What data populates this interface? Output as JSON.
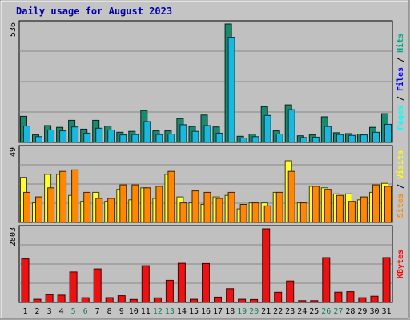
{
  "chart_data": {
    "type": "bar",
    "title": "Daily usage for August 2023",
    "categories": [
      "1",
      "2",
      "3",
      "4",
      "5",
      "6",
      "7",
      "8",
      "9",
      "10",
      "11",
      "12",
      "13",
      "14",
      "15",
      "16",
      "17",
      "18",
      "19",
      "20",
      "21",
      "22",
      "23",
      "24",
      "25",
      "26",
      "27",
      "28",
      "29",
      "30",
      "31"
    ],
    "weekend_days": [
      5,
      6,
      12,
      13,
      19,
      20,
      26,
      27
    ],
    "panels": [
      {
        "id": "pages-files-hits",
        "ymax": 536,
        "ymax_label": "536",
        "side_label": [
          {
            "text": "Pages",
            "color": "#00ffff"
          },
          {
            "text": " / ",
            "color": "#000000"
          },
          {
            "text": "Files",
            "color": "#0000ff"
          },
          {
            "text": " / ",
            "color": "#000000"
          },
          {
            "text": "Hits",
            "color": "#00aa88"
          }
        ],
        "series": [
          {
            "name": "Hits",
            "color": "#1a8a6e",
            "values": [
              118,
              34,
              76,
              68,
              100,
              60,
              100,
              74,
              46,
              50,
              144,
              52,
              52,
              108,
              72,
              124,
              70,
              536,
              28,
              38,
              162,
              52,
              170,
              30,
              34,
              116,
              44,
              40,
              38,
              68,
              130
            ]
          },
          {
            "name": "Files",
            "color": "#1ab8dc",
            "values": [
              74,
              26,
              56,
              52,
              70,
              42,
              64,
              56,
              34,
              36,
              94,
              36,
              38,
              80,
              50,
              76,
              42,
              476,
              20,
              26,
              122,
              38,
              148,
              22,
              24,
              72,
              36,
              32,
              34,
              46,
              82
            ]
          },
          {
            "name": "Pages",
            "color": "#00ffff",
            "values": [
              0,
              0,
              0,
              0,
              0,
              0,
              0,
              0,
              0,
              0,
              0,
              0,
              0,
              0,
              0,
              0,
              0,
              0,
              0,
              0,
              0,
              0,
              0,
              0,
              0,
              0,
              0,
              0,
              0,
              0,
              0
            ]
          }
        ]
      },
      {
        "id": "visits-sites",
        "ymax": 49,
        "ymax_label": "49",
        "side_label": [
          {
            "text": "Sites",
            "color": "#ff8800"
          },
          {
            "text": " / ",
            "color": "#000000"
          },
          {
            "text": "Visits",
            "color": "#ffff00"
          }
        ],
        "series": [
          {
            "name": "Visits",
            "color": "#ffff30",
            "values": [
              30,
              13,
              32,
              32,
              18,
              14,
              20,
              14,
              22,
              15,
              23,
              16,
              32,
              17,
              13,
              12,
              17,
              18,
              9,
              13,
              13,
              20,
              41,
              13,
              24,
              23,
              19,
              19,
              15,
              20,
              26
            ]
          },
          {
            "name": "Sites",
            "color": "#ff8800",
            "values": [
              20,
              17,
              23,
              34,
              35,
              20,
              16,
              16,
              25,
              25,
              23,
              24,
              34,
              13,
              21,
              20,
              16,
              20,
              12,
              13,
              11,
              20,
              34,
              13,
              24,
              22,
              18,
              14,
              17,
              25,
              24
            ]
          }
        ]
      },
      {
        "id": "kbytes",
        "ymax": 2803,
        "ymax_label": "2803",
        "side_label": [
          {
            "text": "KBytes",
            "color": "#ff0000"
          }
        ],
        "series": [
          {
            "name": "KBytes",
            "color": "#ee1111",
            "values": [
              1658,
              118,
              294,
              278,
              1162,
              180,
              1276,
              182,
              256,
              112,
              1398,
              174,
              840,
              1489,
              118,
              1480,
              202,
              525,
              118,
              110,
              2803,
              388,
              816,
              66,
              66,
              1706,
              389,
              407,
              180,
              238,
              1706
            ]
          }
        ]
      }
    ]
  }
}
